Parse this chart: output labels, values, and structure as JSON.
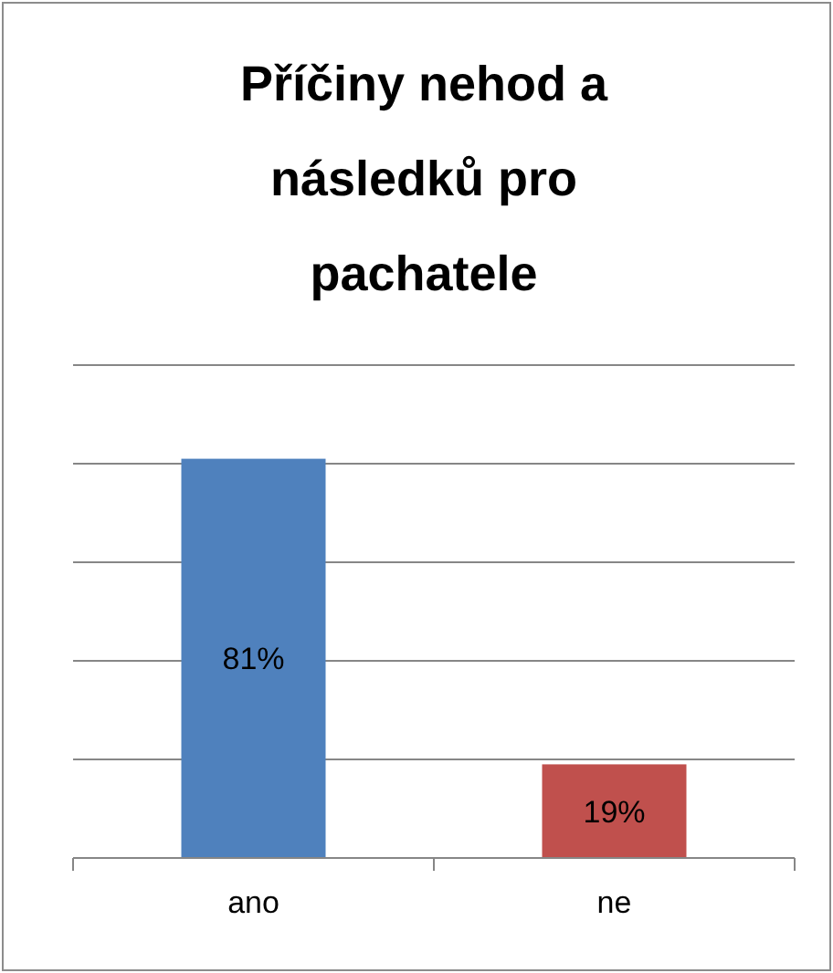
{
  "chart_data": {
    "type": "bar",
    "title": "Příčiny nehod a následků pro pachatele",
    "categories": [
      "ano",
      "ne"
    ],
    "values": [
      81,
      19
    ],
    "colors": [
      "#4f81bd",
      "#c0504d"
    ],
    "value_labels": [
      "81%",
      "19%"
    ],
    "ylim": [
      0,
      100
    ],
    "yticks": [
      {
        "value": 0,
        "label": null
      },
      {
        "value": 20,
        "label": null
      },
      {
        "value": 40,
        "label": null
      },
      {
        "value": 60,
        "label": null
      },
      {
        "value": 80,
        "label": null
      },
      {
        "value": 100,
        "label": null
      }
    ],
    "grid": "y"
  }
}
